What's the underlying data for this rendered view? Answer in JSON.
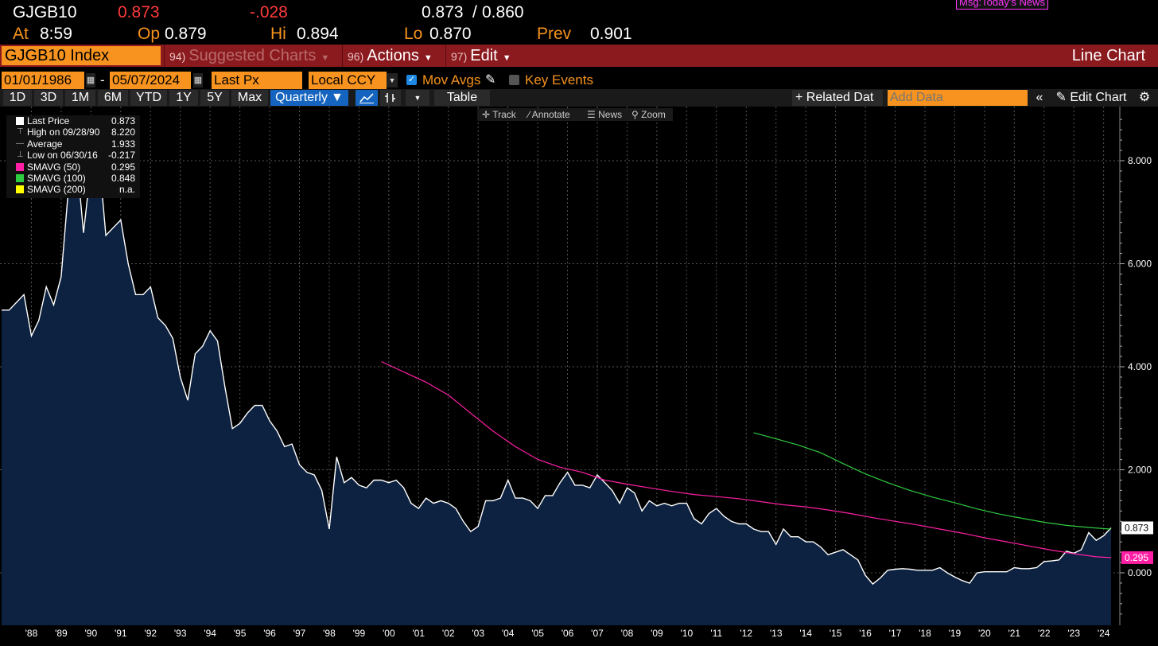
{
  "quote": {
    "ticker": "GJGB10",
    "last": "0.873",
    "change": "-.028",
    "bid_ask": "0.873",
    "bid_ask_sep": "/",
    "ask": "0.860",
    "at_label": "At",
    "time": "8:59",
    "op_label": "Op",
    "open": "0.879",
    "hi_label": "Hi",
    "high": "0.894",
    "lo_label": "Lo",
    "low": "0.870",
    "prev_label": "Prev",
    "prev": "0.901",
    "msg": "Msg:Today's News"
  },
  "menu": {
    "security": "GJGB10 Index",
    "suggested_num": "94)",
    "suggested": "Suggested Charts",
    "actions_num": "96)",
    "actions": "Actions",
    "edit_num": "97)",
    "edit": "Edit",
    "chart_type": "Line Chart"
  },
  "controls": {
    "start_date": "01/01/1986",
    "dash": "-",
    "end_date": "05/07/2024",
    "field": "Last Px",
    "currency": "Local CCY",
    "mov_avgs": "Mov Avgs",
    "key_events": "Key Events"
  },
  "toolbar": {
    "ranges": [
      "1D",
      "3D",
      "1M",
      "6M",
      "YTD",
      "1Y",
      "5Y",
      "Max"
    ],
    "period": "Quarterly",
    "table": "Table",
    "related": "+ Related Dat",
    "add_data_placeholder": "Add Data",
    "edit_chart": "Edit Chart"
  },
  "chart_tools": [
    "Track",
    "Annotate",
    "News",
    "Zoom"
  ],
  "legend": [
    {
      "label": "Last Price",
      "value": "0.873",
      "color": "#ffffff"
    },
    {
      "label": "High on 09/28/90",
      "value": "8.220",
      "color": ""
    },
    {
      "label": "Average",
      "value": "1.933",
      "color": ""
    },
    {
      "label": "Low on 06/30/16",
      "value": "-0.217",
      "color": ""
    },
    {
      "label": "SMAVG (50)",
      "value": "0.295",
      "color": "#ff1fa5"
    },
    {
      "label": "SMAVG (100)",
      "value": "0.848",
      "color": "#2ecc40"
    },
    {
      "label": "SMAVG (200)",
      "value": "n.a.",
      "color": "#ffff00"
    }
  ],
  "chart_data": {
    "type": "area",
    "ylim": [
      -1,
      9
    ],
    "yticks": [
      "8.000",
      "6.000",
      "4.000",
      "2.000",
      "0.000"
    ],
    "ytick_values": [
      8,
      6,
      4,
      2,
      0
    ],
    "xlabels": [
      "'88",
      "'89",
      "'90",
      "'91",
      "'92",
      "'93",
      "'94",
      "'95",
      "'96",
      "'97",
      "'98",
      "'99",
      "'00",
      "'01",
      "'02",
      "'03",
      "'04",
      "'05",
      "'06",
      "'07",
      "'08",
      "'09",
      "'10",
      "'11",
      "'12",
      "'13",
      "'14",
      "'15",
      "'16",
      "'17",
      "'18",
      "'19",
      "'20",
      "'21",
      "'22",
      "'23",
      "'24"
    ],
    "xlabel_years": [
      1988,
      1989,
      1990,
      1991,
      1992,
      1993,
      1994,
      1995,
      1996,
      1997,
      1998,
      1999,
      2000,
      2001,
      2002,
      2003,
      2004,
      2005,
      2006,
      2007,
      2008,
      2009,
      2010,
      2011,
      2012,
      2013,
      2014,
      2015,
      2016,
      2017,
      2018,
      2019,
      2020,
      2021,
      2022,
      2023,
      2024
    ],
    "series": [
      {
        "name": "Last Price",
        "color": "#ffffff",
        "fill": "#0d2240",
        "points": [
          [
            1987.0,
            5.1
          ],
          [
            1987.25,
            5.1
          ],
          [
            1987.5,
            5.25
          ],
          [
            1987.75,
            5.4
          ],
          [
            1988.0,
            4.6
          ],
          [
            1988.25,
            4.9
          ],
          [
            1988.5,
            5.55
          ],
          [
            1988.75,
            5.2
          ],
          [
            1989.0,
            5.75
          ],
          [
            1989.25,
            7.5
          ],
          [
            1989.5,
            8.2
          ],
          [
            1989.75,
            6.6
          ],
          [
            1990.0,
            7.9
          ],
          [
            1990.25,
            8.2
          ],
          [
            1990.5,
            6.55
          ],
          [
            1990.75,
            6.7
          ],
          [
            1991.0,
            6.85
          ],
          [
            1991.25,
            6.0
          ],
          [
            1991.5,
            5.4
          ],
          [
            1991.75,
            5.4
          ],
          [
            1992.0,
            5.55
          ],
          [
            1992.25,
            4.95
          ],
          [
            1992.5,
            4.8
          ],
          [
            1992.75,
            4.55
          ],
          [
            1993.0,
            3.8
          ],
          [
            1993.25,
            3.35
          ],
          [
            1993.5,
            4.25
          ],
          [
            1993.75,
            4.4
          ],
          [
            1994.0,
            4.7
          ],
          [
            1994.25,
            4.5
          ],
          [
            1994.5,
            3.6
          ],
          [
            1994.75,
            2.8
          ],
          [
            1995.0,
            2.9
          ],
          [
            1995.25,
            3.1
          ],
          [
            1995.5,
            3.25
          ],
          [
            1995.75,
            3.25
          ],
          [
            1996.0,
            2.95
          ],
          [
            1996.25,
            2.75
          ],
          [
            1996.5,
            2.45
          ],
          [
            1996.75,
            2.5
          ],
          [
            1997.0,
            2.1
          ],
          [
            1997.25,
            1.95
          ],
          [
            1997.5,
            1.9
          ],
          [
            1997.75,
            1.6
          ],
          [
            1998.0,
            0.85
          ],
          [
            1998.25,
            2.25
          ],
          [
            1998.5,
            1.75
          ],
          [
            1998.75,
            1.85
          ],
          [
            1999.0,
            1.7
          ],
          [
            1999.25,
            1.65
          ],
          [
            1999.5,
            1.8
          ],
          [
            1999.75,
            1.8
          ],
          [
            2000.0,
            1.75
          ],
          [
            2000.25,
            1.8
          ],
          [
            2000.5,
            1.65
          ],
          [
            2000.75,
            1.35
          ],
          [
            2001.0,
            1.25
          ],
          [
            2001.25,
            1.45
          ],
          [
            2001.5,
            1.35
          ],
          [
            2001.75,
            1.4
          ],
          [
            2002.0,
            1.35
          ],
          [
            2002.25,
            1.25
          ],
          [
            2002.5,
            1.0
          ],
          [
            2002.75,
            0.8
          ],
          [
            2003.0,
            0.9
          ],
          [
            2003.25,
            1.4
          ],
          [
            2003.5,
            1.4
          ],
          [
            2003.75,
            1.45
          ],
          [
            2004.0,
            1.8
          ],
          [
            2004.25,
            1.45
          ],
          [
            2004.5,
            1.45
          ],
          [
            2004.75,
            1.4
          ],
          [
            2005.0,
            1.25
          ],
          [
            2005.25,
            1.5
          ],
          [
            2005.5,
            1.5
          ],
          [
            2005.75,
            1.75
          ],
          [
            2006.0,
            1.95
          ],
          [
            2006.25,
            1.7
          ],
          [
            2006.5,
            1.7
          ],
          [
            2006.75,
            1.65
          ],
          [
            2007.0,
            1.9
          ],
          [
            2007.25,
            1.75
          ],
          [
            2007.5,
            1.6
          ],
          [
            2007.75,
            1.35
          ],
          [
            2008.0,
            1.65
          ],
          [
            2008.25,
            1.55
          ],
          [
            2008.5,
            1.2
          ],
          [
            2008.75,
            1.4
          ],
          [
            2009.0,
            1.3
          ],
          [
            2009.25,
            1.35
          ],
          [
            2009.5,
            1.3
          ],
          [
            2009.75,
            1.35
          ],
          [
            2010.0,
            1.35
          ],
          [
            2010.25,
            1.05
          ],
          [
            2010.5,
            0.95
          ],
          [
            2010.75,
            1.15
          ],
          [
            2011.0,
            1.25
          ],
          [
            2011.25,
            1.1
          ],
          [
            2011.5,
            1.0
          ],
          [
            2011.75,
            0.95
          ],
          [
            2012.0,
            0.95
          ],
          [
            2012.25,
            0.85
          ],
          [
            2012.5,
            0.8
          ],
          [
            2012.75,
            0.8
          ],
          [
            2013.0,
            0.55
          ],
          [
            2013.25,
            0.85
          ],
          [
            2013.5,
            0.7
          ],
          [
            2013.75,
            0.7
          ],
          [
            2014.0,
            0.6
          ],
          [
            2014.25,
            0.6
          ],
          [
            2014.5,
            0.5
          ],
          [
            2014.75,
            0.35
          ],
          [
            2015.0,
            0.4
          ],
          [
            2015.25,
            0.45
          ],
          [
            2015.5,
            0.35
          ],
          [
            2015.75,
            0.25
          ],
          [
            2016.0,
            -0.05
          ],
          [
            2016.25,
            -0.217
          ],
          [
            2016.5,
            -0.1
          ],
          [
            2016.75,
            0.05
          ],
          [
            2017.0,
            0.07
          ],
          [
            2017.25,
            0.08
          ],
          [
            2017.5,
            0.07
          ],
          [
            2017.75,
            0.05
          ],
          [
            2018.0,
            0.05
          ],
          [
            2018.25,
            0.05
          ],
          [
            2018.5,
            0.1
          ],
          [
            2018.75,
            0.0
          ],
          [
            2019.0,
            -0.08
          ],
          [
            2019.25,
            -0.15
          ],
          [
            2019.5,
            -0.2
          ],
          [
            2019.75,
            0.0
          ],
          [
            2020.0,
            0.02
          ],
          [
            2020.25,
            0.02
          ],
          [
            2020.5,
            0.02
          ],
          [
            2020.75,
            0.02
          ],
          [
            2021.0,
            0.1
          ],
          [
            2021.25,
            0.08
          ],
          [
            2021.5,
            0.08
          ],
          [
            2021.75,
            0.1
          ],
          [
            2022.0,
            0.22
          ],
          [
            2022.25,
            0.23
          ],
          [
            2022.5,
            0.25
          ],
          [
            2022.75,
            0.42
          ],
          [
            2023.0,
            0.38
          ],
          [
            2023.25,
            0.45
          ],
          [
            2023.5,
            0.78
          ],
          [
            2023.75,
            0.63
          ],
          [
            2024.0,
            0.72
          ],
          [
            2024.25,
            0.873
          ]
        ]
      },
      {
        "name": "SMAVG (50)",
        "color": "#ff1fa5",
        "points": [
          [
            1999.75,
            4.1
          ],
          [
            2000.5,
            3.9
          ],
          [
            2001.25,
            3.7
          ],
          [
            2002.0,
            3.45
          ],
          [
            2002.75,
            3.1
          ],
          [
            2003.5,
            2.75
          ],
          [
            2004.25,
            2.45
          ],
          [
            2005.0,
            2.2
          ],
          [
            2005.75,
            2.05
          ],
          [
            2006.5,
            1.95
          ],
          [
            2007.25,
            1.8
          ],
          [
            2008.0,
            1.72
          ],
          [
            2008.75,
            1.65
          ],
          [
            2009.5,
            1.58
          ],
          [
            2010.25,
            1.52
          ],
          [
            2011.0,
            1.48
          ],
          [
            2011.75,
            1.44
          ],
          [
            2012.5,
            1.38
          ],
          [
            2013.25,
            1.32
          ],
          [
            2014.0,
            1.28
          ],
          [
            2014.75,
            1.22
          ],
          [
            2015.5,
            1.15
          ],
          [
            2016.25,
            1.07
          ],
          [
            2017.0,
            1.0
          ],
          [
            2017.75,
            0.93
          ],
          [
            2018.5,
            0.85
          ],
          [
            2019.25,
            0.77
          ],
          [
            2020.0,
            0.68
          ],
          [
            2020.75,
            0.6
          ],
          [
            2021.5,
            0.52
          ],
          [
            2022.25,
            0.44
          ],
          [
            2023.0,
            0.37
          ],
          [
            2023.75,
            0.31
          ],
          [
            2024.25,
            0.295
          ]
        ]
      },
      {
        "name": "SMAVG (100)",
        "color": "#2ecc40",
        "points": [
          [
            2012.25,
            2.72
          ],
          [
            2013.0,
            2.6
          ],
          [
            2013.75,
            2.48
          ],
          [
            2014.5,
            2.33
          ],
          [
            2015.25,
            2.12
          ],
          [
            2016.0,
            1.92
          ],
          [
            2016.75,
            1.75
          ],
          [
            2017.5,
            1.6
          ],
          [
            2018.25,
            1.47
          ],
          [
            2019.0,
            1.36
          ],
          [
            2019.75,
            1.24
          ],
          [
            2020.5,
            1.14
          ],
          [
            2021.25,
            1.06
          ],
          [
            2022.0,
            0.98
          ],
          [
            2022.75,
            0.92
          ],
          [
            2023.5,
            0.88
          ],
          [
            2024.25,
            0.848
          ]
        ]
      }
    ],
    "last_labels": [
      {
        "text": "0.873",
        "value": 0.873,
        "bg": "#ffffff",
        "fg": "#000000"
      },
      {
        "text": "0.295",
        "value": 0.295,
        "bg": "#ff1fa5",
        "fg": "#ffffff"
      }
    ]
  }
}
